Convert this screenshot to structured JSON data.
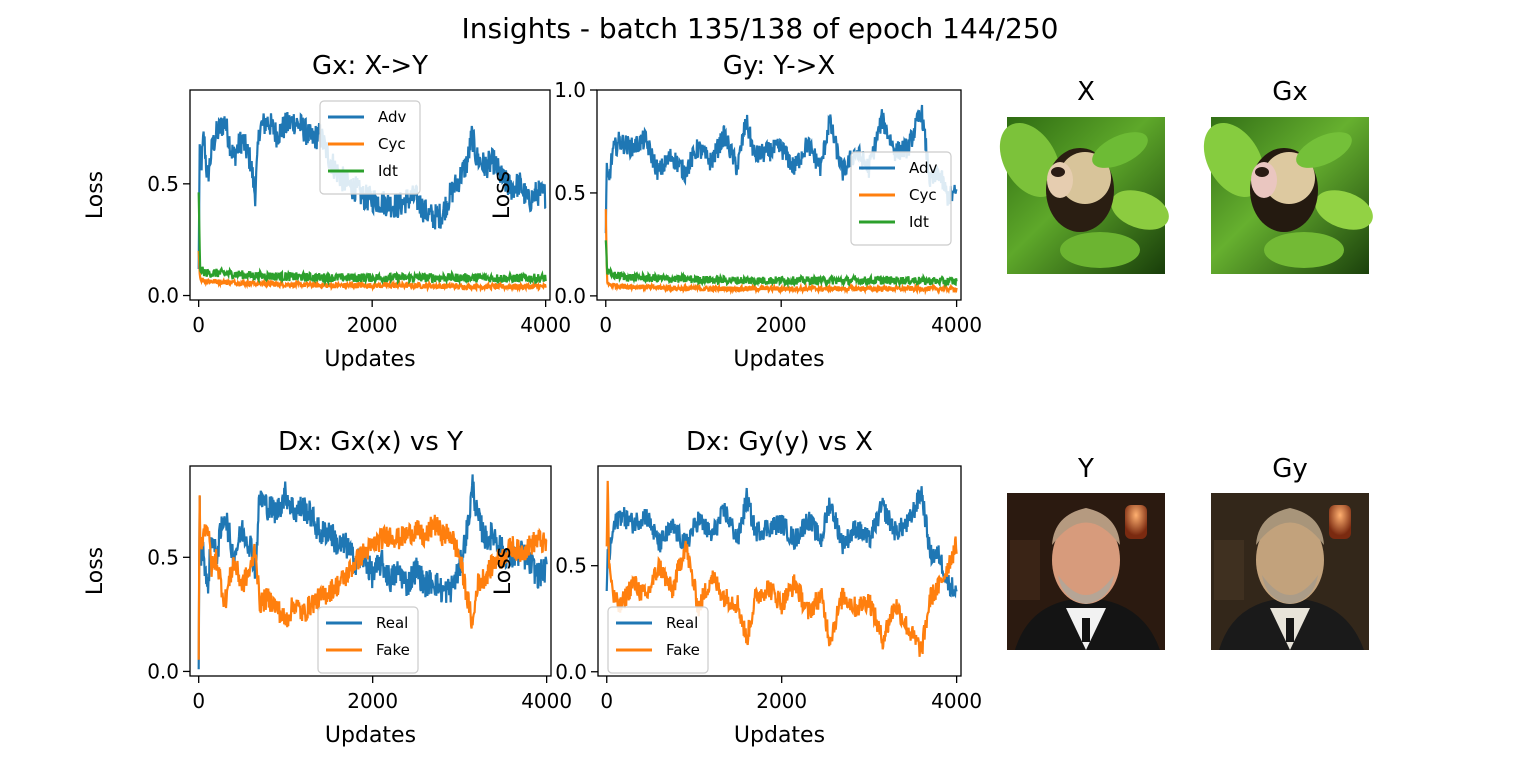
{
  "suptitle": "Insights - batch 135/138 of epoch 144/250",
  "colors": {
    "blue": "#1f77b4",
    "orange": "#ff7f0e",
    "green": "#2ca02c"
  },
  "chart_data": [
    {
      "type": "line",
      "title": "Gx: X->Y",
      "xlabel": "Updates",
      "ylabel": "Loss",
      "xlim": [
        -100,
        4050
      ],
      "ylim": [
        -0.02,
        0.92
      ],
      "xticks": [
        0,
        2000,
        4000
      ],
      "yticks": [
        0.0,
        0.5
      ],
      "legend_position": "top-center",
      "series": [
        {
          "name": "Adv",
          "color": "#1f77b4",
          "noise": 0.06,
          "x": [
            0,
            10,
            20,
            40,
            60,
            100,
            150,
            200,
            300,
            400,
            500,
            600,
            650,
            700,
            800,
            900,
            1000,
            1100,
            1200,
            1300,
            1400,
            1500,
            1600,
            1700,
            1800,
            1900,
            2000,
            2100,
            2200,
            2300,
            2400,
            2500,
            2600,
            2700,
            2800,
            2900,
            3000,
            3100,
            3150,
            3200,
            3300,
            3400,
            3500,
            3600,
            3700,
            3800,
            3900,
            4000
          ],
          "y": [
            0.1,
            0.68,
            0.55,
            0.62,
            0.72,
            0.52,
            0.65,
            0.72,
            0.78,
            0.62,
            0.7,
            0.6,
            0.45,
            0.75,
            0.78,
            0.72,
            0.76,
            0.78,
            0.75,
            0.7,
            0.72,
            0.62,
            0.55,
            0.5,
            0.48,
            0.44,
            0.43,
            0.42,
            0.41,
            0.4,
            0.43,
            0.44,
            0.38,
            0.35,
            0.36,
            0.45,
            0.52,
            0.6,
            0.72,
            0.62,
            0.58,
            0.6,
            0.52,
            0.48,
            0.5,
            0.42,
            0.46,
            0.45
          ]
        },
        {
          "name": "Cyc",
          "color": "#ff7f0e",
          "noise": 0.012,
          "x": [
            0,
            15,
            40,
            100,
            300,
            600,
            1000,
            1500,
            2000,
            2500,
            3000,
            3500,
            4000
          ],
          "y": [
            0.2,
            0.08,
            0.07,
            0.065,
            0.06,
            0.055,
            0.05,
            0.045,
            0.045,
            0.045,
            0.04,
            0.04,
            0.04
          ]
        },
        {
          "name": "Idt",
          "color": "#2ca02c",
          "noise": 0.02,
          "x": [
            0,
            15,
            40,
            100,
            300,
            600,
            1000,
            1500,
            2000,
            2500,
            3000,
            3500,
            4000
          ],
          "y": [
            0.45,
            0.12,
            0.11,
            0.1,
            0.1,
            0.09,
            0.085,
            0.08,
            0.08,
            0.08,
            0.08,
            0.078,
            0.078
          ]
        }
      ]
    },
    {
      "type": "line",
      "title": "Gy: Y->X",
      "xlabel": "Updates",
      "ylabel": "Loss",
      "xlim": [
        -100,
        4050
      ],
      "ylim": [
        -0.02,
        1.0
      ],
      "xticks": [
        0,
        2000,
        4000
      ],
      "yticks": [
        0.0,
        0.5,
        1.0
      ],
      "legend_position": "center-right",
      "series": [
        {
          "name": "Adv",
          "color": "#1f77b4",
          "noise": 0.05,
          "x": [
            0,
            10,
            30,
            80,
            150,
            300,
            450,
            600,
            750,
            900,
            1050,
            1200,
            1350,
            1500,
            1600,
            1700,
            1850,
            2000,
            2150,
            2300,
            2450,
            2550,
            2700,
            2850,
            3000,
            3150,
            3300,
            3450,
            3600,
            3700,
            3800,
            3900,
            4000
          ],
          "y": [
            0.3,
            0.6,
            0.55,
            0.7,
            0.75,
            0.72,
            0.76,
            0.6,
            0.68,
            0.6,
            0.72,
            0.65,
            0.78,
            0.62,
            0.85,
            0.68,
            0.7,
            0.72,
            0.62,
            0.74,
            0.62,
            0.85,
            0.6,
            0.7,
            0.62,
            0.86,
            0.7,
            0.72,
            0.9,
            0.55,
            0.6,
            0.48,
            0.5
          ]
        },
        {
          "name": "Cyc",
          "color": "#ff7f0e",
          "noise": 0.012,
          "x": [
            0,
            15,
            40,
            100,
            300,
            600,
            1000,
            1500,
            2000,
            2500,
            3000,
            3500,
            4000
          ],
          "y": [
            0.42,
            0.06,
            0.055,
            0.05,
            0.045,
            0.04,
            0.035,
            0.035,
            0.035,
            0.035,
            0.035,
            0.035,
            0.035
          ]
        },
        {
          "name": "Idt",
          "color": "#2ca02c",
          "noise": 0.02,
          "x": [
            0,
            15,
            40,
            100,
            300,
            600,
            1000,
            1500,
            2000,
            2500,
            3000,
            3500,
            4000
          ],
          "y": [
            0.28,
            0.12,
            0.11,
            0.1,
            0.09,
            0.085,
            0.08,
            0.075,
            0.075,
            0.075,
            0.075,
            0.075,
            0.07
          ]
        }
      ]
    },
    {
      "type": "line",
      "title": "Dx: Gx(x) vs Y",
      "xlabel": "Updates",
      "ylabel": "Loss",
      "xlim": [
        -100,
        4050
      ],
      "ylim": [
        -0.02,
        0.9
      ],
      "xticks": [
        0,
        2000,
        4000
      ],
      "yticks": [
        0.0,
        0.5
      ],
      "legend_position": "bottom-center",
      "series": [
        {
          "name": "Real",
          "color": "#1f77b4",
          "noise": 0.06,
          "x": [
            0,
            10,
            20,
            50,
            100,
            150,
            200,
            300,
            400,
            500,
            600,
            650,
            700,
            800,
            900,
            1000,
            1100,
            1200,
            1300,
            1400,
            1500,
            1600,
            1700,
            1800,
            1900,
            2000,
            2100,
            2200,
            2300,
            2400,
            2500,
            2600,
            2700,
            2800,
            2900,
            3000,
            3100,
            3150,
            3200,
            3300,
            3400,
            3500,
            3600,
            3700,
            3800,
            3900,
            4000
          ],
          "y": [
            0.04,
            0.75,
            0.5,
            0.55,
            0.35,
            0.6,
            0.5,
            0.7,
            0.5,
            0.62,
            0.55,
            0.45,
            0.76,
            0.72,
            0.7,
            0.78,
            0.7,
            0.72,
            0.68,
            0.6,
            0.62,
            0.55,
            0.55,
            0.48,
            0.5,
            0.42,
            0.48,
            0.4,
            0.44,
            0.38,
            0.45,
            0.38,
            0.4,
            0.35,
            0.36,
            0.45,
            0.65,
            0.82,
            0.68,
            0.58,
            0.6,
            0.52,
            0.5,
            0.52,
            0.48,
            0.42,
            0.45
          ]
        },
        {
          "name": "Fake",
          "color": "#ff7f0e",
          "noise": 0.05,
          "x": [
            0,
            10,
            20,
            50,
            100,
            150,
            200,
            300,
            400,
            500,
            600,
            650,
            700,
            800,
            900,
            1000,
            1100,
            1200,
            1300,
            1400,
            1500,
            1600,
            1700,
            1800,
            1900,
            2000,
            2100,
            2200,
            2300,
            2400,
            2500,
            2600,
            2700,
            2800,
            2900,
            3000,
            3100,
            3150,
            3200,
            3300,
            3400,
            3500,
            3600,
            3700,
            3800,
            3900,
            4000
          ],
          "y": [
            0.05,
            0.78,
            0.55,
            0.6,
            0.65,
            0.45,
            0.5,
            0.3,
            0.48,
            0.38,
            0.45,
            0.55,
            0.3,
            0.32,
            0.28,
            0.22,
            0.3,
            0.25,
            0.3,
            0.32,
            0.35,
            0.38,
            0.42,
            0.48,
            0.52,
            0.55,
            0.58,
            0.6,
            0.58,
            0.6,
            0.62,
            0.58,
            0.65,
            0.6,
            0.6,
            0.5,
            0.3,
            0.2,
            0.38,
            0.42,
            0.48,
            0.5,
            0.55,
            0.52,
            0.55,
            0.58,
            0.55
          ]
        }
      ]
    },
    {
      "type": "line",
      "title": "Dx: Gy(y) vs X",
      "xlabel": "Updates",
      "ylabel": "Loss",
      "xlim": [
        -100,
        4050
      ],
      "ylim": [
        -0.02,
        0.97
      ],
      "xticks": [
        0,
        2000,
        4000
      ],
      "yticks": [
        0.0,
        0.5
      ],
      "legend_position": "bottom-left",
      "series": [
        {
          "name": "Real",
          "color": "#1f77b4",
          "noise": 0.05,
          "x": [
            0,
            10,
            30,
            80,
            150,
            300,
            450,
            600,
            750,
            900,
            1050,
            1200,
            1350,
            1500,
            1600,
            1700,
            1850,
            2000,
            2150,
            2300,
            2450,
            2550,
            2700,
            2850,
            3000,
            3150,
            3300,
            3450,
            3600,
            3700,
            3800,
            3900,
            4000
          ],
          "y": [
            0.35,
            0.6,
            0.55,
            0.68,
            0.74,
            0.7,
            0.74,
            0.6,
            0.68,
            0.6,
            0.72,
            0.64,
            0.76,
            0.62,
            0.82,
            0.66,
            0.68,
            0.7,
            0.62,
            0.72,
            0.62,
            0.8,
            0.6,
            0.68,
            0.62,
            0.78,
            0.66,
            0.7,
            0.85,
            0.55,
            0.55,
            0.42,
            0.38
          ]
        },
        {
          "name": "Fake",
          "color": "#ff7f0e",
          "noise": 0.05,
          "x": [
            0,
            10,
            30,
            80,
            150,
            300,
            450,
            600,
            750,
            900,
            1050,
            1200,
            1350,
            1500,
            1600,
            1700,
            1850,
            2000,
            2150,
            2300,
            2450,
            2550,
            2700,
            2850,
            3000,
            3150,
            3300,
            3450,
            3600,
            3700,
            3800,
            3900,
            4000
          ],
          "y": [
            0.55,
            0.9,
            0.5,
            0.35,
            0.3,
            0.42,
            0.35,
            0.5,
            0.38,
            0.6,
            0.3,
            0.45,
            0.35,
            0.32,
            0.15,
            0.35,
            0.4,
            0.32,
            0.42,
            0.28,
            0.36,
            0.15,
            0.36,
            0.3,
            0.34,
            0.15,
            0.32,
            0.2,
            0.1,
            0.35,
            0.4,
            0.5,
            0.6
          ]
        }
      ]
    }
  ],
  "images": [
    {
      "title": "X",
      "subject": "capuchin-monkey-in-foliage"
    },
    {
      "title": "Gx",
      "subject": "capuchin-monkey-in-foliage-translated"
    },
    {
      "title": "Y",
      "subject": "portrait-man-dark-background"
    },
    {
      "title": "Gy",
      "subject": "portrait-man-dark-background-translated"
    }
  ]
}
